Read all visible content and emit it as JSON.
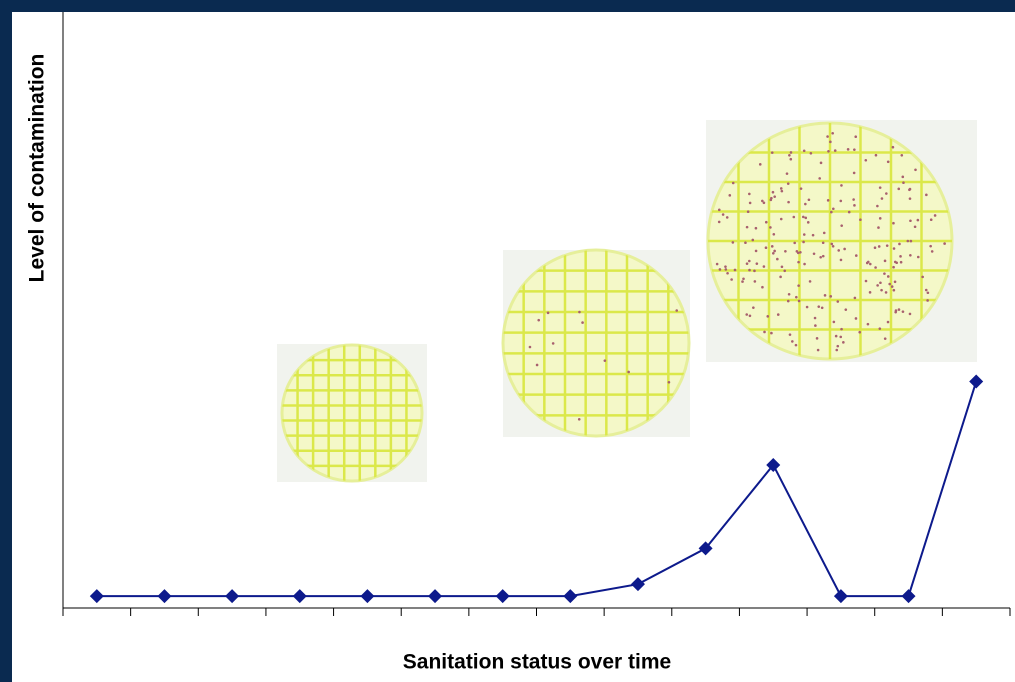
{
  "chart_data": {
    "type": "line",
    "y_label": "Level of contamination",
    "x_label": "Sanitation status over time",
    "categories": [
      null,
      null,
      null,
      null,
      null,
      null,
      null,
      null,
      null,
      null,
      null,
      null,
      null,
      null
    ],
    "series": [
      {
        "name": null,
        "color": "#0d1a8c",
        "values": [
          2,
          2,
          2,
          2,
          2,
          2,
          2,
          2,
          4,
          10,
          24,
          2,
          2,
          38
        ]
      }
    ],
    "ylim": [
      0,
      100
    ]
  }
}
